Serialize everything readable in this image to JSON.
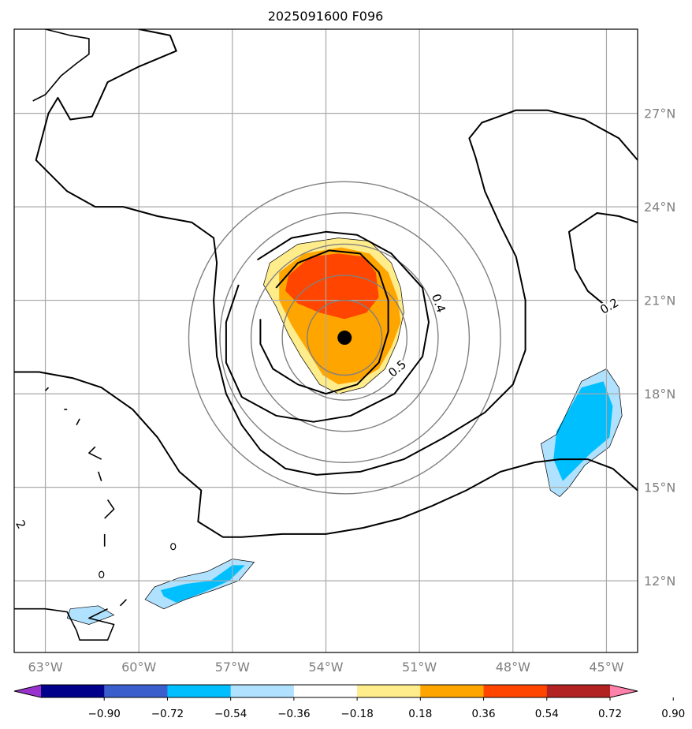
{
  "chart_data": {
    "type": "heatmap",
    "title": "2025091600 F096",
    "map_extent": {
      "lon": [
        -64.0,
        -44.0
      ],
      "lat": [
        9.7,
        29.7
      ]
    },
    "x_ticks": [
      {
        "value": -63,
        "label": "63°W"
      },
      {
        "value": -60,
        "label": "60°W"
      },
      {
        "value": -57,
        "label": "57°W"
      },
      {
        "value": -54,
        "label": "54°W"
      },
      {
        "value": -51,
        "label": "51°W"
      },
      {
        "value": -48,
        "label": "48°W"
      },
      {
        "value": -45,
        "label": "45°W"
      }
    ],
    "y_ticks": [
      {
        "value": 12,
        "label": "12°N"
      },
      {
        "value": 15,
        "label": "15°N"
      },
      {
        "value": 18,
        "label": "18°N"
      },
      {
        "value": 21,
        "label": "21°N"
      },
      {
        "value": 24,
        "label": "24°N"
      },
      {
        "value": 27,
        "label": "27°N"
      }
    ],
    "grid": true,
    "colorbar": {
      "orientation": "horizontal",
      "extend": "both",
      "colors": [
        "#9932cc",
        "#00008b",
        "#3a5fcd",
        "#00bfff",
        "#b0e2ff",
        "#ffffff",
        "#ffec8b",
        "#ffa500",
        "#ff4500",
        "#b22222",
        "#ff82ab"
      ],
      "ticks": [
        "−0.90",
        "−0.72",
        "−0.54",
        "−0.36",
        "−0.18",
        "0.18",
        "0.36",
        "0.54",
        "0.72",
        "0.90"
      ]
    },
    "center_marker": {
      "lon": -53.4,
      "lat": 19.8
    },
    "range_rings_deg": [
      1.2,
      2.0,
      3.0,
      4.0,
      5.0
    ],
    "contour_labels": [
      {
        "text": "0.4",
        "lon": -50.4,
        "lat": 20.9,
        "angle": 70
      },
      {
        "text": "0.5",
        "lon": -51.7,
        "lat": 18.8,
        "angle": -40
      },
      {
        "text": "0.2",
        "lon": -44.9,
        "lat": 20.8,
        "angle": -30
      },
      {
        "text": "2",
        "lon": -63.8,
        "lat": 13.8,
        "angle": 60
      }
    ],
    "filled_regions": [
      {
        "level": "0.18",
        "color": "#ffec8b",
        "points": [
          [
            -55.8,
            22.2
          ],
          [
            -54.9,
            22.8
          ],
          [
            -53.6,
            23.0
          ],
          [
            -52.6,
            22.9
          ],
          [
            -51.9,
            22.2
          ],
          [
            -51.6,
            21.4
          ],
          [
            -51.5,
            20.6
          ],
          [
            -51.7,
            19.7
          ],
          [
            -52.1,
            18.8
          ],
          [
            -52.8,
            18.2
          ],
          [
            -53.6,
            18.0
          ],
          [
            -54.2,
            18.3
          ],
          [
            -54.8,
            19.2
          ],
          [
            -55.2,
            19.9
          ],
          [
            -55.6,
            20.8
          ],
          [
            -56.0,
            21.5
          ]
        ]
      },
      {
        "level": "0.36",
        "color": "#ffa500",
        "points": [
          [
            -55.5,
            21.9
          ],
          [
            -54.7,
            22.5
          ],
          [
            -53.5,
            22.7
          ],
          [
            -52.6,
            22.5
          ],
          [
            -52.0,
            21.9
          ],
          [
            -51.7,
            21.1
          ],
          [
            -51.6,
            20.3
          ],
          [
            -51.9,
            19.5
          ],
          [
            -52.3,
            18.8
          ],
          [
            -53.0,
            18.4
          ],
          [
            -53.6,
            18.3
          ],
          [
            -54.1,
            18.6
          ],
          [
            -54.6,
            19.4
          ],
          [
            -55.1,
            20.2
          ],
          [
            -55.5,
            21.0
          ]
        ]
      },
      {
        "level": "0.54",
        "color": "#ff4500",
        "points": [
          [
            -55.2,
            21.8
          ],
          [
            -54.5,
            22.4
          ],
          [
            -53.6,
            22.5
          ],
          [
            -52.8,
            22.4
          ],
          [
            -52.4,
            21.9
          ],
          [
            -52.3,
            21.1
          ],
          [
            -52.7,
            20.6
          ],
          [
            -53.4,
            20.4
          ],
          [
            -54.2,
            20.6
          ],
          [
            -54.9,
            20.9
          ],
          [
            -55.3,
            21.3
          ]
        ]
      },
      {
        "level": "-0.18",
        "color": "#b0e2ff",
        "points": [
          [
            -46.6,
            16.7
          ],
          [
            -45.8,
            18.4
          ],
          [
            -45.0,
            18.8
          ],
          [
            -44.6,
            18.2
          ],
          [
            -44.5,
            17.3
          ],
          [
            -44.9,
            16.3
          ],
          [
            -45.7,
            15.7
          ],
          [
            -46.2,
            15.0
          ],
          [
            -46.5,
            14.7
          ],
          [
            -46.8,
            14.9
          ],
          [
            -47.0,
            15.9
          ],
          [
            -47.1,
            16.4
          ]
        ]
      },
      {
        "level": "-0.36",
        "color": "#00bfff",
        "points": [
          [
            -46.6,
            16.8
          ],
          [
            -45.8,
            18.2
          ],
          [
            -45.1,
            18.4
          ],
          [
            -44.8,
            17.6
          ],
          [
            -44.9,
            16.6
          ],
          [
            -45.5,
            16.1
          ],
          [
            -46.4,
            15.2
          ],
          [
            -46.7,
            15.9
          ]
        ]
      },
      {
        "level": "-0.18",
        "color": "#b0e2ff",
        "points": [
          [
            -59.5,
            11.8
          ],
          [
            -58.7,
            12.1
          ],
          [
            -57.8,
            12.3
          ],
          [
            -57.0,
            12.7
          ],
          [
            -56.3,
            12.6
          ],
          [
            -56.8,
            12.0
          ],
          [
            -57.6,
            11.7
          ],
          [
            -58.5,
            11.4
          ],
          [
            -59.2,
            11.1
          ],
          [
            -59.8,
            11.4
          ]
        ]
      },
      {
        "level": "-0.36",
        "color": "#00bfff",
        "points": [
          [
            -59.3,
            11.7
          ],
          [
            -58.5,
            11.9
          ],
          [
            -57.7,
            12.0
          ],
          [
            -57.0,
            12.5
          ],
          [
            -56.6,
            12.5
          ],
          [
            -57.1,
            12.0
          ],
          [
            -58.0,
            11.6
          ],
          [
            -58.8,
            11.3
          ],
          [
            -59.2,
            11.5
          ]
        ]
      },
      {
        "level": "-0.18",
        "color": "#b0e2ff",
        "points": [
          [
            -62.2,
            11.1
          ],
          [
            -61.3,
            11.2
          ],
          [
            -60.8,
            10.9
          ],
          [
            -61.6,
            10.6
          ],
          [
            -62.3,
            10.8
          ]
        ]
      }
    ],
    "contour_lines": [
      {
        "width": 2,
        "points": [
          [
            -55.6,
            21.4
          ],
          [
            -54.9,
            22.2
          ],
          [
            -53.9,
            22.6
          ],
          [
            -52.9,
            22.5
          ],
          [
            -52.3,
            21.9
          ],
          [
            -52.0,
            21.0
          ],
          [
            -52.0,
            20.0
          ],
          [
            -52.3,
            19.0
          ],
          [
            -53.0,
            18.3
          ],
          [
            -54.0,
            18.0
          ],
          [
            -54.9,
            18.3
          ],
          [
            -55.7,
            18.8
          ],
          [
            -56.1,
            19.6
          ],
          [
            -56.1,
            20.4
          ]
        ]
      },
      {
        "width": 2,
        "points": [
          [
            -56.2,
            22.3
          ],
          [
            -55.1,
            23.0
          ],
          [
            -54.0,
            23.2
          ],
          [
            -53.0,
            23.1
          ],
          [
            -51.9,
            22.5
          ],
          [
            -50.9,
            21.4
          ],
          [
            -50.7,
            20.3
          ],
          [
            -50.9,
            19.2
          ],
          [
            -51.8,
            18.0
          ],
          [
            -53.2,
            17.3
          ],
          [
            -54.4,
            17.1
          ],
          [
            -55.6,
            17.3
          ],
          [
            -56.7,
            17.9
          ],
          [
            -57.2,
            19.0
          ],
          [
            -57.2,
            20.3
          ],
          [
            -56.8,
            21.5
          ]
        ]
      },
      {
        "width": 2,
        "points": [
          [
            -60.0,
            29.7
          ],
          [
            -59.5,
            29.6
          ],
          [
            -59.0,
            29.5
          ],
          [
            -58.8,
            29.0
          ],
          [
            -60.0,
            28.5
          ],
          [
            -61.0,
            28.0
          ],
          [
            -61.5,
            26.9
          ],
          [
            -62.2,
            26.8
          ],
          [
            -62.6,
            27.5
          ],
          [
            -62.9,
            27.0
          ],
          [
            -63.3,
            25.5
          ],
          [
            -62.3,
            24.5
          ],
          [
            -61.4,
            24.0
          ],
          [
            -60.5,
            24.0
          ],
          [
            -59.4,
            23.7
          ],
          [
            -58.3,
            23.5
          ],
          [
            -57.6,
            23.0
          ],
          [
            -57.5,
            22.2
          ],
          [
            -57.6,
            21.0
          ],
          [
            -57.5,
            19.2
          ],
          [
            -57.2,
            18.0
          ],
          [
            -56.7,
            17.0
          ],
          [
            -56.1,
            16.2
          ],
          [
            -55.3,
            15.6
          ],
          [
            -54.3,
            15.4
          ],
          [
            -52.9,
            15.5
          ],
          [
            -51.5,
            15.9
          ],
          [
            -50.2,
            16.6
          ],
          [
            -48.9,
            17.4
          ],
          [
            -48.0,
            18.3
          ],
          [
            -47.6,
            19.4
          ],
          [
            -47.6,
            21.0
          ],
          [
            -47.9,
            22.4
          ],
          [
            -48.4,
            23.4
          ],
          [
            -48.9,
            24.5
          ],
          [
            -49.2,
            25.6
          ],
          [
            -49.4,
            26.2
          ],
          [
            -49.0,
            26.7
          ],
          [
            -47.9,
            27.1
          ],
          [
            -46.9,
            27.1
          ],
          [
            -45.7,
            26.8
          ],
          [
            -44.6,
            26.2
          ],
          [
            -44.0,
            25.5
          ]
        ]
      },
      {
        "width": 2,
        "points": [
          [
            -64.0,
            18.7
          ],
          [
            -63.2,
            18.7
          ],
          [
            -62.1,
            18.5
          ],
          [
            -61.2,
            18.2
          ],
          [
            -60.2,
            17.5
          ],
          [
            -59.4,
            16.6
          ],
          [
            -58.7,
            15.5
          ],
          [
            -58.0,
            14.9
          ],
          [
            -58.1,
            13.9
          ],
          [
            -57.3,
            13.4
          ],
          [
            -56.7,
            13.4
          ],
          [
            -55.4,
            13.5
          ],
          [
            -54.0,
            13.5
          ],
          [
            -52.8,
            13.7
          ],
          [
            -51.6,
            14.0
          ],
          [
            -50.6,
            14.4
          ],
          [
            -49.5,
            14.9
          ],
          [
            -48.4,
            15.5
          ],
          [
            -47.3,
            15.8
          ],
          [
            -46.5,
            15.9
          ],
          [
            -45.6,
            15.9
          ],
          [
            -44.8,
            15.6
          ],
          [
            -44.0,
            14.9
          ]
        ]
      },
      {
        "width": 2,
        "points": [
          [
            -44.0,
            23.5
          ],
          [
            -44.6,
            23.7
          ],
          [
            -45.3,
            23.8
          ],
          [
            -45.6,
            23.6
          ],
          [
            -46.2,
            23.2
          ],
          [
            -46.0,
            22.0
          ],
          [
            -45.6,
            21.3
          ],
          [
            -45.0,
            20.8
          ]
        ]
      }
    ],
    "coastlines": [
      [
        [
          -63.0,
          29.7
        ],
        [
          -62.2,
          29.5
        ],
        [
          -61.6,
          29.4
        ],
        [
          -61.6,
          28.9
        ],
        [
          -62.0,
          28.6
        ],
        [
          -62.5,
          28.2
        ],
        [
          -63.0,
          27.6
        ],
        [
          -63.4,
          27.4
        ]
      ],
      [
        [
          -63.0,
          18.1
        ],
        [
          -62.9,
          18.2
        ]
      ],
      [
        [
          -62.4,
          17.5
        ],
        [
          -62.3,
          17.5
        ]
      ],
      [
        [
          -62.0,
          17.0
        ],
        [
          -61.9,
          17.2
        ]
      ],
      [
        [
          -61.4,
          16.3
        ],
        [
          -61.6,
          16.1
        ],
        [
          -61.2,
          15.9
        ]
      ],
      [
        [
          -61.3,
          15.5
        ],
        [
          -61.2,
          15.2
        ]
      ],
      [
        [
          -61.0,
          14.6
        ],
        [
          -60.8,
          14.3
        ],
        [
          -61.1,
          14.0
        ]
      ],
      [
        [
          -61.1,
          13.5
        ],
        [
          -61.1,
          13.1
        ]
      ],
      [
        [
          -61.2,
          12.2
        ]
      ],
      [
        [
          -64.0,
          11.1
        ],
        [
          -63.0,
          11.1
        ],
        [
          -62.3,
          11.0
        ],
        [
          -62.0,
          10.4
        ],
        [
          -61.9,
          10.1
        ],
        [
          -61.0,
          10.1
        ],
        [
          -60.8,
          10.6
        ],
        [
          -61.6,
          10.8
        ],
        [
          -61.0,
          11.1
        ]
      ],
      [
        [
          -60.6,
          11.2
        ],
        [
          -60.4,
          11.4
        ]
      ],
      [
        [
          -58.9,
          13.1
        ]
      ]
    ]
  }
}
